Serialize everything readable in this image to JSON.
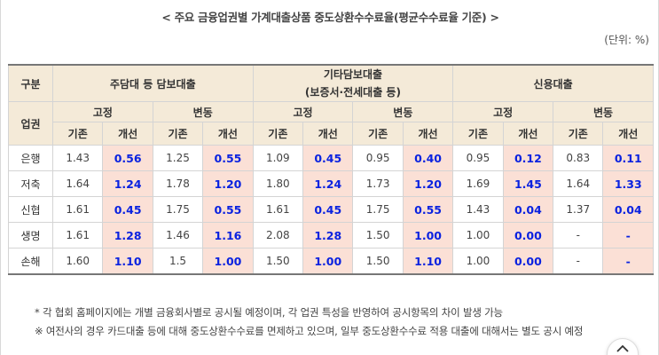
{
  "title": "< 주요 금융업권별 가계대출상품 중도상환수수료율(평균수수료율 기준) >",
  "unit": "(단위: %)",
  "header": {
    "category_label": "구분",
    "sector_label": "업권",
    "groups": [
      "주담대 등 담보대출",
      [
        "기타담보대출",
        "(보증서·전세대출 등)"
      ],
      "신용대출"
    ],
    "types": [
      "고정",
      "변동"
    ],
    "cols": [
      "기존",
      "개선"
    ]
  },
  "rows": [
    {
      "sector": "은행",
      "values": [
        "1.43",
        "0.56",
        "1.25",
        "0.55",
        "1.09",
        "0.45",
        "0.95",
        "0.40",
        "0.95",
        "0.12",
        "0.83",
        "0.11"
      ]
    },
    {
      "sector": "저축",
      "values": [
        "1.64",
        "1.24",
        "1.78",
        "1.20",
        "1.80",
        "1.24",
        "1.73",
        "1.20",
        "1.69",
        "1.45",
        "1.64",
        "1.33"
      ]
    },
    {
      "sector": "신협",
      "values": [
        "1.61",
        "0.45",
        "1.75",
        "0.55",
        "1.61",
        "0.45",
        "1.75",
        "0.55",
        "1.43",
        "0.04",
        "1.37",
        "0.04"
      ]
    },
    {
      "sector": "생명",
      "values": [
        "1.61",
        "1.28",
        "1.46",
        "1.16",
        "2.08",
        "1.28",
        "1.50",
        "1.00",
        "1.00",
        "0.00",
        "-",
        "-"
      ]
    },
    {
      "sector": "손해",
      "values": [
        "1.60",
        "1.10",
        "1.5",
        "1.00",
        "1.50",
        "1.00",
        "1.50",
        "1.10",
        "1.00",
        "0.00",
        "-",
        "-"
      ]
    }
  ],
  "notes": [
    "* 각 협회 홈페이지에는 개별 금융회사별로 공시될 예정이며, 각 업권 특성을 반영하여 공시항목의 차이 발생 가능",
    "※ 여전사의 경우 카드대출 등에 대해 중도상환수수료를 면제하고 있으며, 일부 중도상환수수료 적용 대출에 대해서는 별도 공시 예정"
  ],
  "scroll_top_icon": "chevron-up-icon",
  "colors": {
    "header_bg": "#f4ead8",
    "improved_bg": "#fbe0d6",
    "improved_text": "#0a22e0"
  }
}
